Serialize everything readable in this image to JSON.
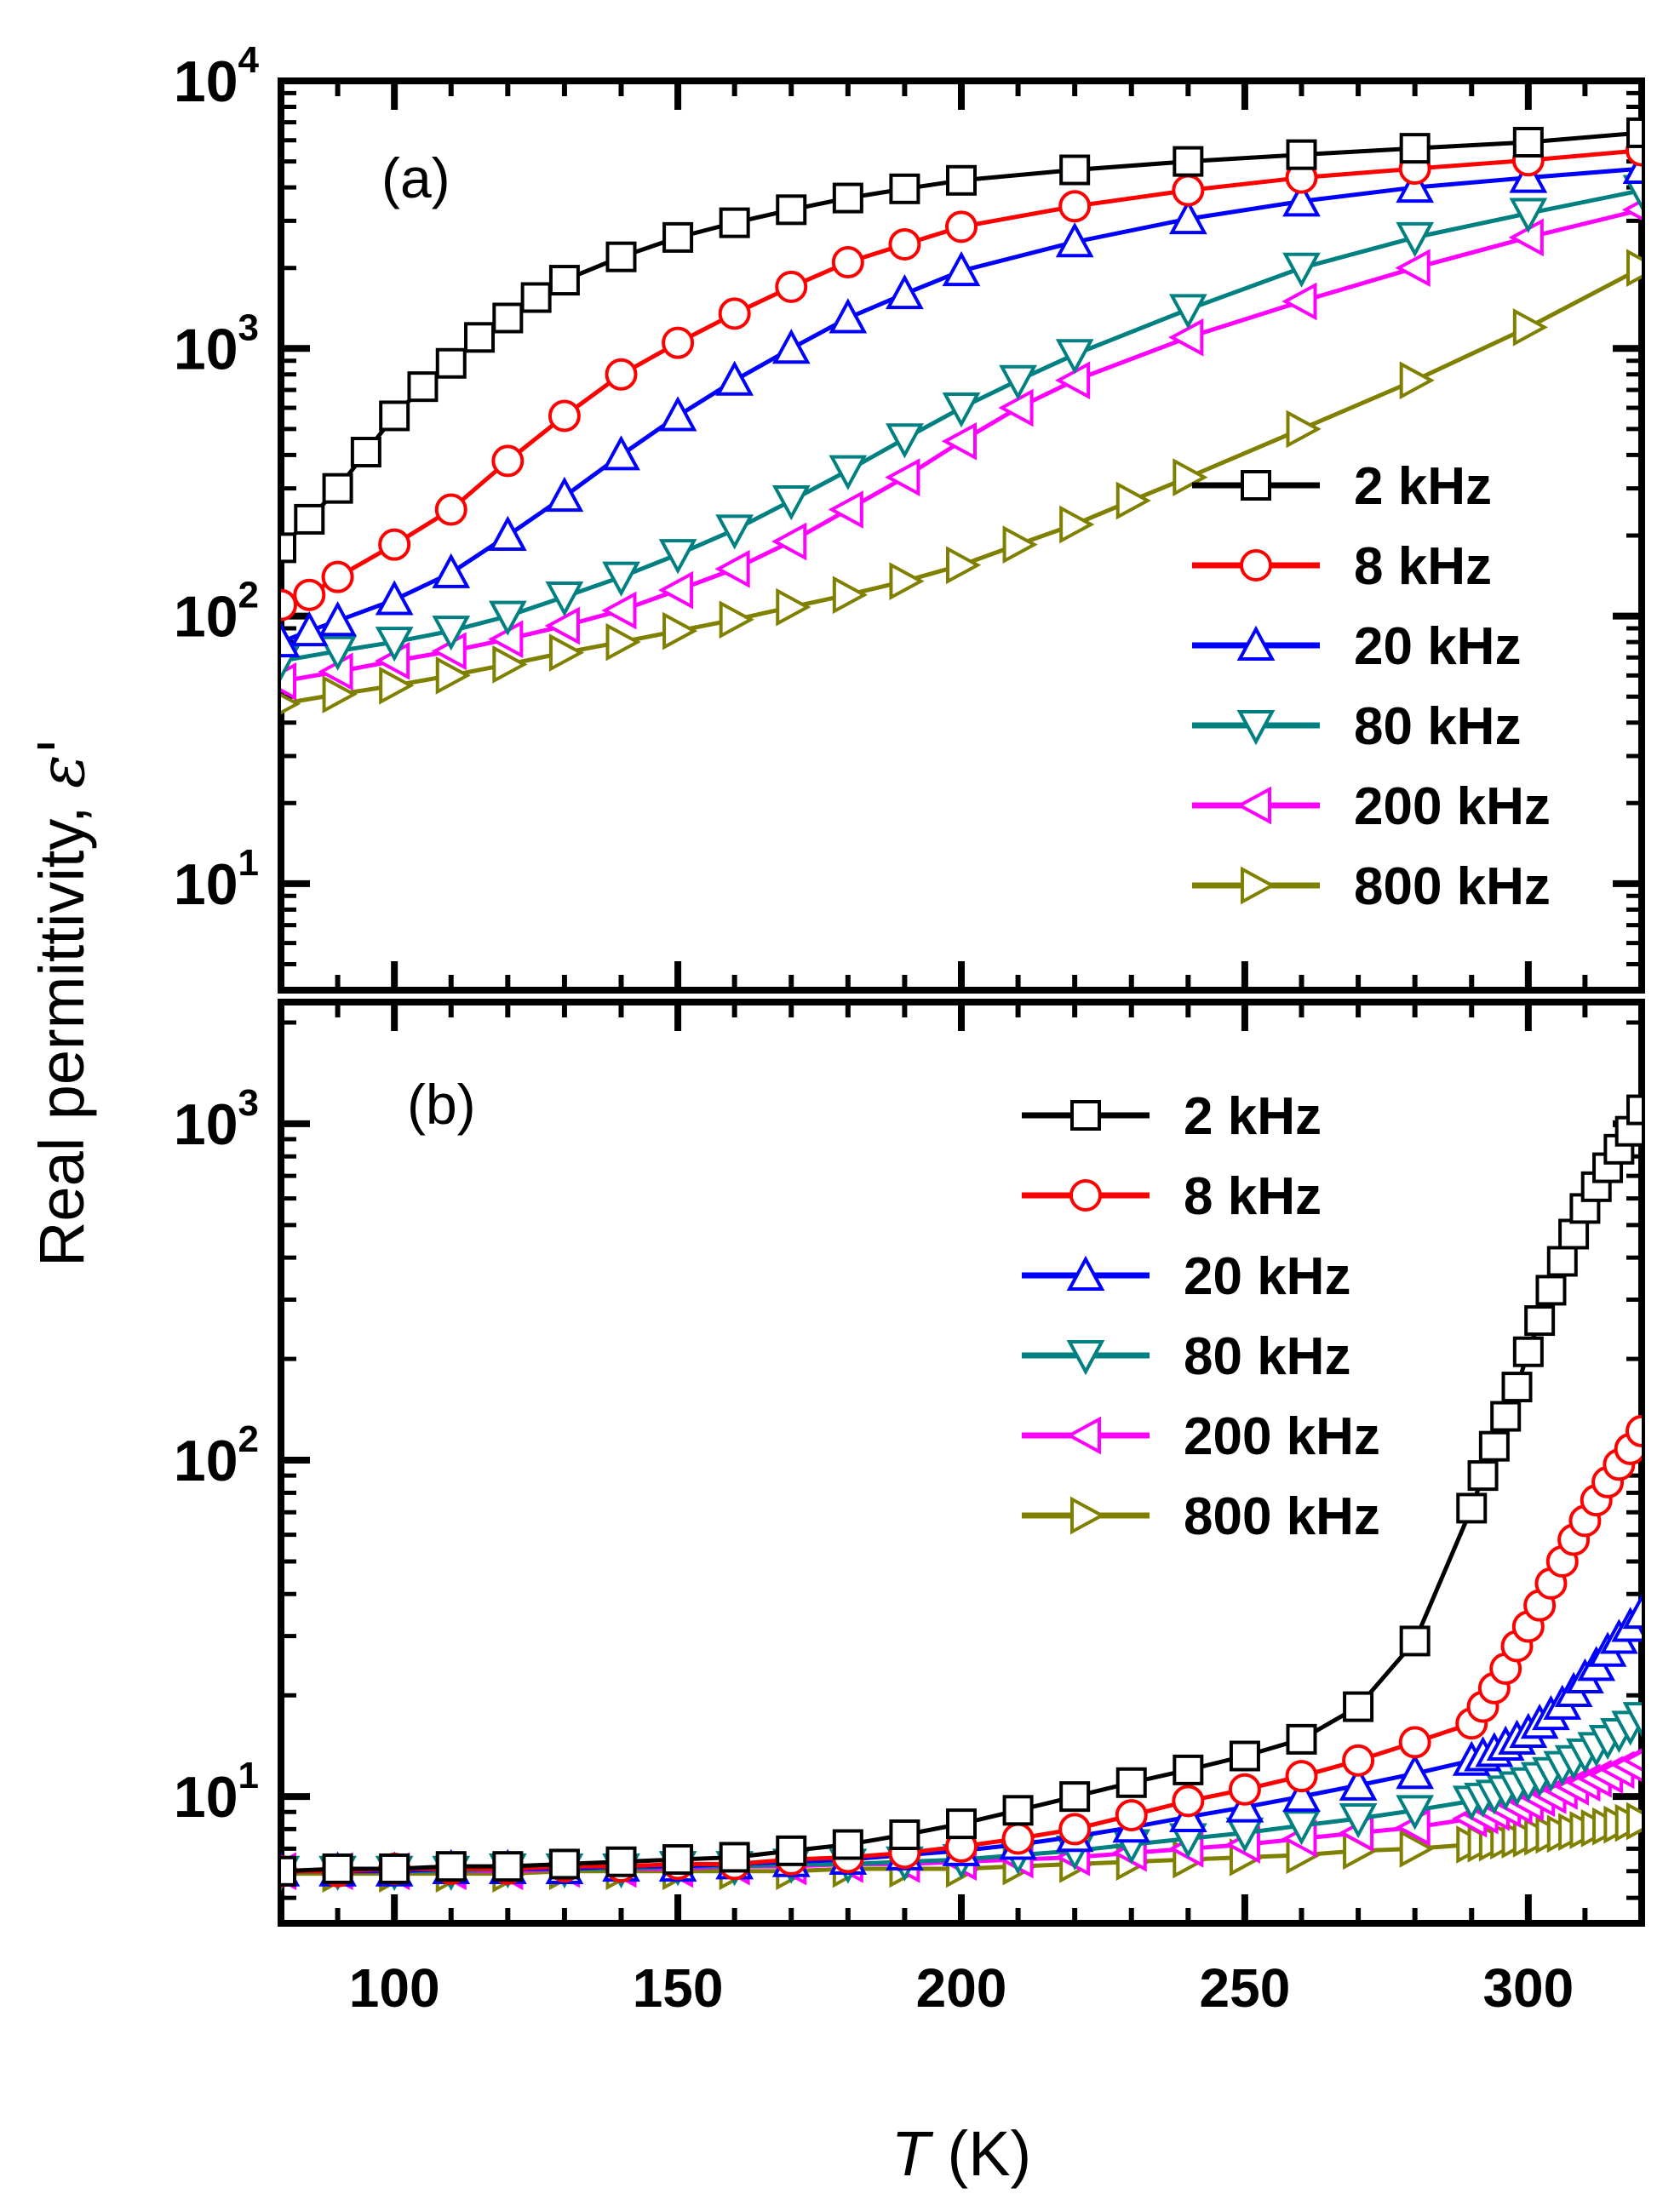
{
  "chart_data": {
    "type": "line",
    "shared_xlabel": {
      "symbol": "T",
      "unit": " (K)"
    },
    "shared_ylabel": {
      "text": "Real permittivity, ",
      "symbol": "ε'"
    },
    "xlim": [
      80,
      320
    ],
    "xticks": [
      100,
      150,
      200,
      250,
      300
    ],
    "ytick_base": "10",
    "panels": [
      {
        "label": "(a)",
        "yscale": "log",
        "ylim": [
          4,
          10000
        ],
        "yticks": [
          {
            "base": "10",
            "exp": "1",
            "value": 10
          },
          {
            "base": "10",
            "exp": "2",
            "value": 100
          },
          {
            "base": "10",
            "exp": "3",
            "value": 1000
          },
          {
            "base": "10",
            "exp": "4",
            "value": 10000
          }
        ],
        "series": [
          {
            "name": "2 kHz",
            "color": "#000000",
            "marker": "square",
            "x": [
              80,
              85,
              90,
              95,
              100,
              105,
              110,
              115,
              120,
              125,
              130,
              140,
              150,
              160,
              170,
              180,
              190,
              200,
              220,
              240,
              260,
              280,
              300,
              320
            ],
            "y": [
              180,
              230,
              300,
              410,
              560,
              720,
              880,
              1100,
              1300,
              1550,
              1800,
              2200,
              2600,
              2950,
              3300,
              3650,
              3950,
              4250,
              4650,
              5000,
              5300,
              5600,
              5900,
              6400
            ]
          },
          {
            "name": "8 kHz",
            "color": "#ff0000",
            "marker": "circle",
            "x": [
              80,
              85,
              90,
              100,
              110,
              120,
              130,
              140,
              150,
              160,
              170,
              180,
              190,
              200,
              220,
              240,
              260,
              280,
              300,
              320
            ],
            "y": [
              110,
              120,
              140,
              185,
              250,
              380,
              560,
              800,
              1050,
              1350,
              1700,
              2100,
              2450,
              2850,
              3400,
              3900,
              4350,
              4700,
              5050,
              5500
            ]
          },
          {
            "name": "20 kHz",
            "color": "#0000ff",
            "marker": "triangle-up",
            "x": [
              80,
              85,
              90,
              100,
              110,
              120,
              130,
              140,
              150,
              160,
              170,
              180,
              190,
              200,
              220,
              240,
              260,
              280,
              300,
              320
            ],
            "y": [
              80,
              88,
              96,
              115,
              145,
              200,
              280,
              400,
              560,
              760,
              1000,
              1300,
              1600,
              1950,
              2500,
              3050,
              3550,
              4000,
              4350,
              4700
            ]
          },
          {
            "name": "80 kHz",
            "color": "#008080",
            "marker": "triangle-down",
            "x": [
              80,
              90,
              100,
              110,
              120,
              130,
              140,
              150,
              160,
              170,
              180,
              190,
              200,
              210,
              220,
              240,
              260,
              280,
              300,
              320
            ],
            "y": [
              68,
              74,
              80,
              88,
              100,
              118,
              140,
              170,
              210,
              270,
              350,
              460,
              600,
              760,
              950,
              1400,
              2000,
              2600,
              3200,
              3900
            ]
          },
          {
            "name": "200 kHz",
            "color": "#ff00ff",
            "marker": "triangle-left",
            "x": [
              80,
              90,
              100,
              110,
              120,
              130,
              140,
              150,
              160,
              170,
              180,
              190,
              200,
              210,
              220,
              240,
              260,
              280,
              300,
              320
            ],
            "y": [
              57,
              62,
              68,
              74,
              82,
              92,
              105,
              125,
              150,
              190,
              250,
              330,
              450,
              600,
              760,
              1100,
              1500,
              2000,
              2600,
              3300
            ]
          },
          {
            "name": "800 kHz",
            "color": "#808000",
            "marker": "triangle-right",
            "x": [
              80,
              90,
              100,
              110,
              120,
              130,
              140,
              150,
              160,
              170,
              180,
              190,
              200,
              210,
              220,
              230,
              240,
              260,
              280,
              300,
              320
            ],
            "y": [
              47,
              51,
              55,
              60,
              66,
              73,
              80,
              88,
              97,
              108,
              120,
              135,
              155,
              185,
              220,
              270,
              330,
              500,
              760,
              1200,
              2000
            ]
          }
        ],
        "legend": "right"
      },
      {
        "label": "(b)",
        "yscale": "log",
        "ylim": [
          4.2,
          2300
        ],
        "yticks": [
          {
            "base": "10",
            "exp": "1",
            "value": 10
          },
          {
            "base": "10",
            "exp": "2",
            "value": 100
          },
          {
            "base": "10",
            "exp": "3",
            "value": 1000
          }
        ],
        "series": [
          {
            "name": "2 kHz",
            "color": "#000000",
            "marker": "square",
            "x": [
              80,
              90,
              100,
              110,
              120,
              130,
              140,
              150,
              160,
              170,
              180,
              190,
              200,
              210,
              220,
              230,
              240,
              250,
              260,
              270,
              280,
              290,
              292,
              294,
              296,
              298,
              300,
              302,
              304,
              306,
              308,
              310,
              312,
              314,
              316,
              318,
              320
            ],
            "y": [
              6.0,
              6.1,
              6.1,
              6.2,
              6.2,
              6.3,
              6.4,
              6.5,
              6.6,
              6.9,
              7.2,
              7.7,
              8.3,
              9.1,
              10.0,
              11.0,
              12.0,
              13.2,
              14.8,
              18.5,
              29,
              72,
              90,
              110,
              135,
              165,
              210,
              260,
              320,
              390,
              470,
              560,
              650,
              740,
              840,
              950,
              1100
            ]
          },
          {
            "name": "8 kHz",
            "color": "#ff0000",
            "marker": "circle",
            "x": [
              80,
              90,
              100,
              110,
              120,
              130,
              140,
              150,
              160,
              170,
              180,
              190,
              200,
              210,
              220,
              230,
              240,
              250,
              260,
              270,
              280,
              290,
              292,
              294,
              296,
              298,
              300,
              302,
              304,
              306,
              308,
              310,
              312,
              314,
              316,
              318,
              320
            ],
            "y": [
              6.0,
              6.0,
              6.1,
              6.1,
              6.1,
              6.2,
              6.2,
              6.3,
              6.3,
              6.5,
              6.6,
              6.8,
              7.1,
              7.5,
              8.0,
              8.8,
              9.7,
              10.5,
              11.5,
              12.8,
              14.5,
              16.5,
              18.5,
              21,
              24,
              28,
              32,
              37,
              43,
              50,
              58,
              66,
              76,
              86,
              97,
              108,
              122
            ]
          },
          {
            "name": "20 kHz",
            "color": "#0000ff",
            "marker": "triangle-up",
            "x": [
              80,
              90,
              100,
              110,
              120,
              130,
              140,
              150,
              160,
              170,
              180,
              190,
              200,
              210,
              220,
              230,
              240,
              250,
              260,
              270,
              280,
              290,
              292,
              294,
              296,
              298,
              300,
              302,
              304,
              306,
              308,
              310,
              312,
              314,
              316,
              318,
              320
            ],
            "y": [
              6.0,
              6.0,
              6.0,
              6.1,
              6.1,
              6.1,
              6.2,
              6.2,
              6.3,
              6.4,
              6.5,
              6.7,
              6.9,
              7.2,
              7.6,
              8.1,
              8.7,
              9.3,
              10.0,
              10.8,
              11.7,
              12.8,
              13.2,
              13.6,
              14.2,
              14.8,
              15.5,
              16.5,
              17.5,
              18.8,
              20.5,
              22.5,
              24.5,
              27,
              29.5,
              32,
              35
            ]
          },
          {
            "name": "80 kHz",
            "color": "#008080",
            "marker": "triangle-down",
            "x": [
              80,
              90,
              100,
              110,
              120,
              130,
              140,
              150,
              160,
              170,
              180,
              190,
              200,
              210,
              220,
              230,
              240,
              250,
              260,
              270,
              280,
              290,
              292,
              294,
              296,
              298,
              300,
              302,
              304,
              306,
              308,
              310,
              312,
              314,
              316,
              318,
              320
            ],
            "y": [
              6.0,
              6.0,
              6.0,
              6.0,
              6.1,
              6.1,
              6.1,
              6.2,
              6.2,
              6.3,
              6.3,
              6.4,
              6.5,
              6.7,
              6.9,
              7.2,
              7.5,
              7.8,
              8.2,
              8.6,
              9.1,
              9.7,
              9.9,
              10.1,
              10.4,
              10.7,
              11.0,
              11.4,
              11.8,
              12.3,
              12.8,
              13.4,
              14.0,
              14.7,
              15.4,
              16.2,
              17.2
            ]
          },
          {
            "name": "200 kHz",
            "color": "#ff00ff",
            "marker": "triangle-left",
            "x": [
              80,
              90,
              100,
              110,
              120,
              130,
              140,
              150,
              160,
              170,
              180,
              190,
              200,
              210,
              220,
              230,
              240,
              250,
              260,
              270,
              280,
              290,
              292,
              294,
              296,
              298,
              300,
              302,
              304,
              306,
              308,
              310,
              312,
              314,
              316,
              318,
              320
            ],
            "y": [
              6.0,
              6.0,
              6.0,
              6.0,
              6.0,
              6.1,
              6.1,
              6.1,
              6.2,
              6.2,
              6.3,
              6.3,
              6.4,
              6.5,
              6.6,
              6.8,
              7.0,
              7.2,
              7.5,
              7.8,
              8.1,
              8.6,
              8.8,
              9.0,
              9.2,
              9.4,
              9.6,
              9.9,
              10.1,
              10.4,
              10.7,
              11.0,
              11.3,
              11.6,
              12.0,
              12.4,
              12.8
            ]
          },
          {
            "name": "800 kHz",
            "color": "#808000",
            "marker": "triangle-right",
            "x": [
              80,
              90,
              100,
              110,
              120,
              130,
              140,
              150,
              160,
              170,
              180,
              190,
              200,
              210,
              220,
              230,
              240,
              250,
              260,
              270,
              280,
              290,
              292,
              294,
              296,
              298,
              300,
              302,
              304,
              306,
              308,
              310,
              312,
              314,
              316,
              318,
              320
            ],
            "y": [
              5.9,
              5.9,
              5.9,
              5.9,
              5.9,
              6.0,
              6.0,
              6.0,
              6.0,
              6.0,
              6.1,
              6.1,
              6.1,
              6.2,
              6.3,
              6.4,
              6.5,
              6.6,
              6.7,
              6.9,
              7.0,
              7.2,
              7.25,
              7.3,
              7.4,
              7.45,
              7.5,
              7.6,
              7.7,
              7.75,
              7.85,
              7.95,
              8.05,
              8.15,
              8.25,
              8.35,
              8.45
            ]
          }
        ],
        "legend": "top-right"
      }
    ]
  }
}
